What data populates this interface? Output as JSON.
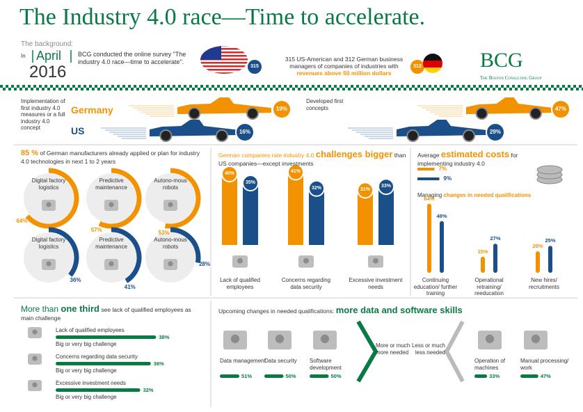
{
  "header": {
    "title": "The Industry 4.0 race—Time to accelerate.",
    "background": "The background:",
    "in": "In",
    "month": "April",
    "year": "2016",
    "survey": "BCG conducted the online survey \"The industry 4.0 race—time to accelerate\".",
    "sample": "315 US-American and 312 German business managers of companies of industries with",
    "revenue": "revenues above 50 million dollars",
    "us_count": "315",
    "de_count": "312",
    "logo": "BCG",
    "logo_sub": "The Boston Consulting Group"
  },
  "race": {
    "germany": "Germany",
    "us": "US",
    "implementation": {
      "label": "Implementation of first industry 4.0 measures or a full industry 4.0 concept",
      "germany": {
        "value": 19,
        "label": "19%"
      },
      "us": {
        "value": 16,
        "label": "16%"
      }
    },
    "concepts": {
      "label": "Developed first concepts",
      "germany": {
        "value": 47,
        "label": "47%"
      },
      "us": {
        "value": 29,
        "label": "29%"
      }
    }
  },
  "adoption": {
    "highlight": "85 %",
    "text": " of German manufacturers already applied or plan for industry 4.0 technologies in next 1 to 2 years",
    "items": [
      {
        "label": "Digital factory logistics",
        "germany": {
          "value": 64,
          "label": "64%"
        },
        "us": {
          "value": 36,
          "label": "36%"
        }
      },
      {
        "label": "Predictive maintenance",
        "germany": {
          "value": 57,
          "label": "57%"
        },
        "us": {
          "value": 41,
          "label": "41%"
        }
      },
      {
        "label": "Autono-mous robots",
        "germany": {
          "value": 53,
          "label": "53%"
        },
        "us": {
          "value": 28,
          "label": "28%"
        }
      }
    ]
  },
  "challenges": {
    "pre": "German companies rate industry 4.0 ",
    "em": "challenges bigger",
    "post": " than US companies—except investments",
    "items": [
      {
        "label": "Lack of qualified employees",
        "germany": {
          "value": 40,
          "label": "40%"
        },
        "us": {
          "value": 35,
          "label": "35%"
        }
      },
      {
        "label": "Concerns regarding data security",
        "germany": {
          "value": 41,
          "label": "41%"
        },
        "us": {
          "value": 32,
          "label": "32%"
        }
      },
      {
        "label": "Excessive investment needs",
        "germany": {
          "value": 31,
          "label": "31%"
        },
        "us": {
          "value": 33,
          "label": "33%"
        }
      }
    ]
  },
  "costs": {
    "pre": "Average ",
    "em": "estimated costs",
    "post": " for implementing industry 4.0",
    "germany": {
      "value": 7,
      "label": "7%"
    },
    "us": {
      "value": 9,
      "label": "9%"
    }
  },
  "qualifications": {
    "pre": "Managing ",
    "em": "changes in needed qualifications",
    "items": [
      {
        "label": "Continuing education/ further training",
        "germany": {
          "value": 64,
          "label": "64%"
        },
        "us": {
          "value": 48,
          "label": "48%"
        }
      },
      {
        "label": "Operational retraining/ reeducation",
        "germany": {
          "value": 15,
          "label": "15%"
        },
        "us": {
          "value": 27,
          "label": "27%"
        }
      },
      {
        "label": "New hires/ recruitments",
        "germany": {
          "value": 20,
          "label": "20%"
        },
        "us": {
          "value": 25,
          "label": "25%"
        }
      }
    ]
  },
  "main_challenge": {
    "pre": "More than ",
    "em": "one third",
    "post": " see lack of qualified employees as main challenge",
    "sub": "Big or very big challenge",
    "items": [
      {
        "label": "Lack of qualified employees",
        "value": 38,
        "value_label": "38%"
      },
      {
        "label": "Concerns regarding data security",
        "value": 36,
        "value_label": "36%"
      },
      {
        "label": "Excessive investment needs",
        "value": 32,
        "value_label": "32%"
      }
    ]
  },
  "skills": {
    "pre": "Upcoming changes in needed qualifications: ",
    "em": "more data and software skills",
    "more": "More or much more needed",
    "less": "Less or much less needed",
    "more_items": [
      {
        "label": "Data management",
        "value": 51,
        "value_label": "51%"
      },
      {
        "label": "Data security",
        "value": 50,
        "value_label": "50%"
      },
      {
        "label": "Software development",
        "value": 50,
        "value_label": "50%"
      }
    ],
    "less_items": [
      {
        "label": "Operation of machines",
        "value": 33,
        "value_label": "33%"
      },
      {
        "label": "Manual processing/ work",
        "value": 47,
        "value_label": "47%"
      }
    ]
  }
}
